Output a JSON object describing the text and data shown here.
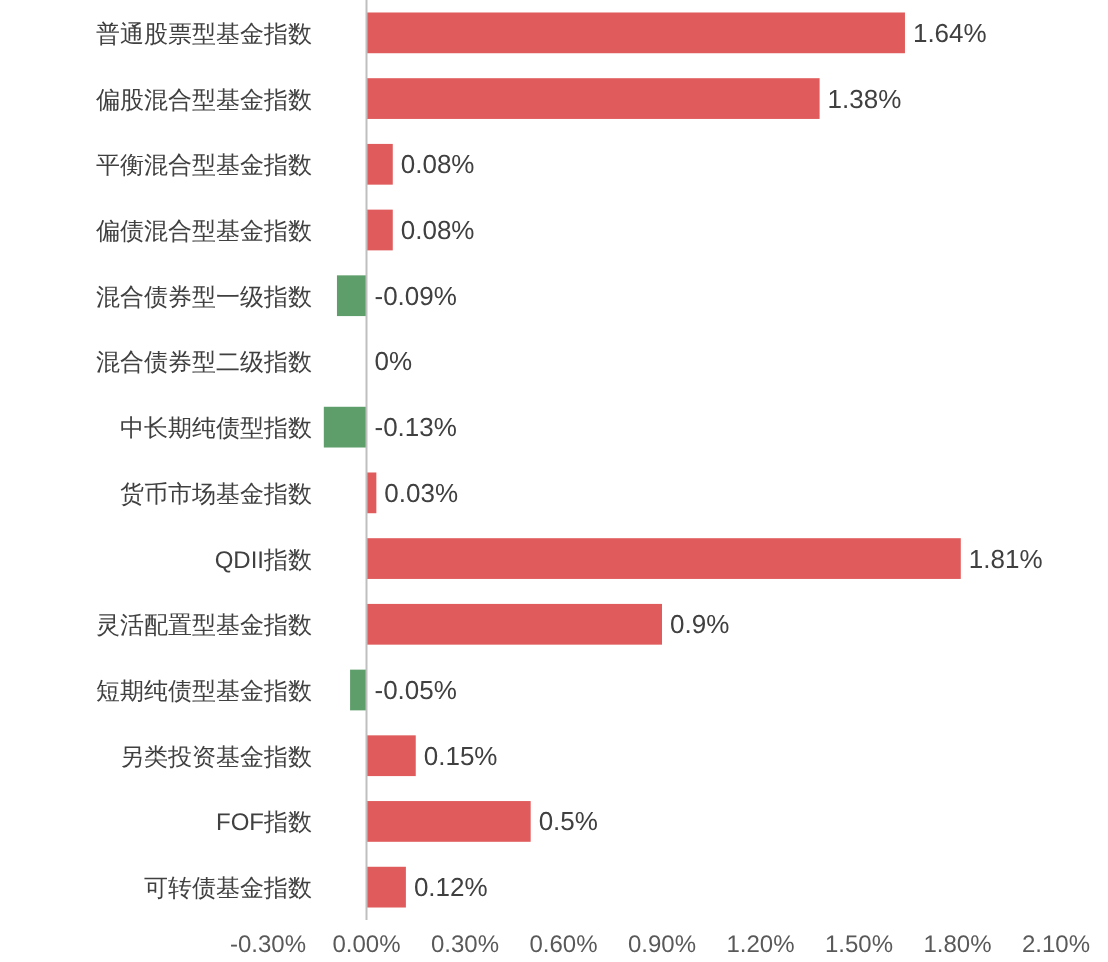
{
  "chart_data": {
    "type": "bar",
    "orientation": "horizontal",
    "categories": [
      "普通股票型基金指数",
      "偏股混合型基金指数",
      "平衡混合型基金指数",
      "偏债混合型基金指数",
      "混合债券型一级指数",
      "混合债券型二级指数",
      "中长期纯债型指数",
      "货币市场基金指数",
      "QDII指数",
      "灵活配置型基金指数",
      "短期纯债型基金指数",
      "另类投资基金指数",
      "FOF指数",
      "可转债基金指数"
    ],
    "values": [
      1.64,
      1.38,
      0.08,
      0.08,
      -0.09,
      0,
      -0.13,
      0.03,
      1.81,
      0.9,
      -0.05,
      0.15,
      0.5,
      0.12
    ],
    "value_labels": [
      "1.64%",
      "1.38%",
      "0.08%",
      "0.08%",
      "-0.09%",
      "0%",
      "-0.13%",
      "0.03%",
      "1.81%",
      "0.9%",
      "-0.05%",
      "0.15%",
      "0.5%",
      "0.12%"
    ],
    "colors": [
      "#e05c5c",
      "#e05c5c",
      "#e05c5c",
      "#e05c5c",
      "#5e9e6b",
      "#e05c5c",
      "#5e9e6b",
      "#e05c5c",
      "#e05c5c",
      "#e05c5c",
      "#5e9e6b",
      "#e05c5c",
      "#e05c5c",
      "#e05c5c"
    ],
    "xlim": [
      -0.3,
      2.1
    ],
    "xticks": [
      {
        "value": -0.3,
        "label": "-0.30%"
      },
      {
        "value": 0,
        "label": "0.00%"
      },
      {
        "value": 0.3,
        "label": "0.30%"
      },
      {
        "value": 0.6,
        "label": "0.60%"
      },
      {
        "value": 0.9,
        "label": "0.90%"
      },
      {
        "value": 1.2,
        "label": "1.20%"
      },
      {
        "value": 1.5,
        "label": "1.50%"
      },
      {
        "value": 1.8,
        "label": "1.80%"
      },
      {
        "value": 2.1,
        "label": "2.10%"
      }
    ],
    "grid": false
  }
}
